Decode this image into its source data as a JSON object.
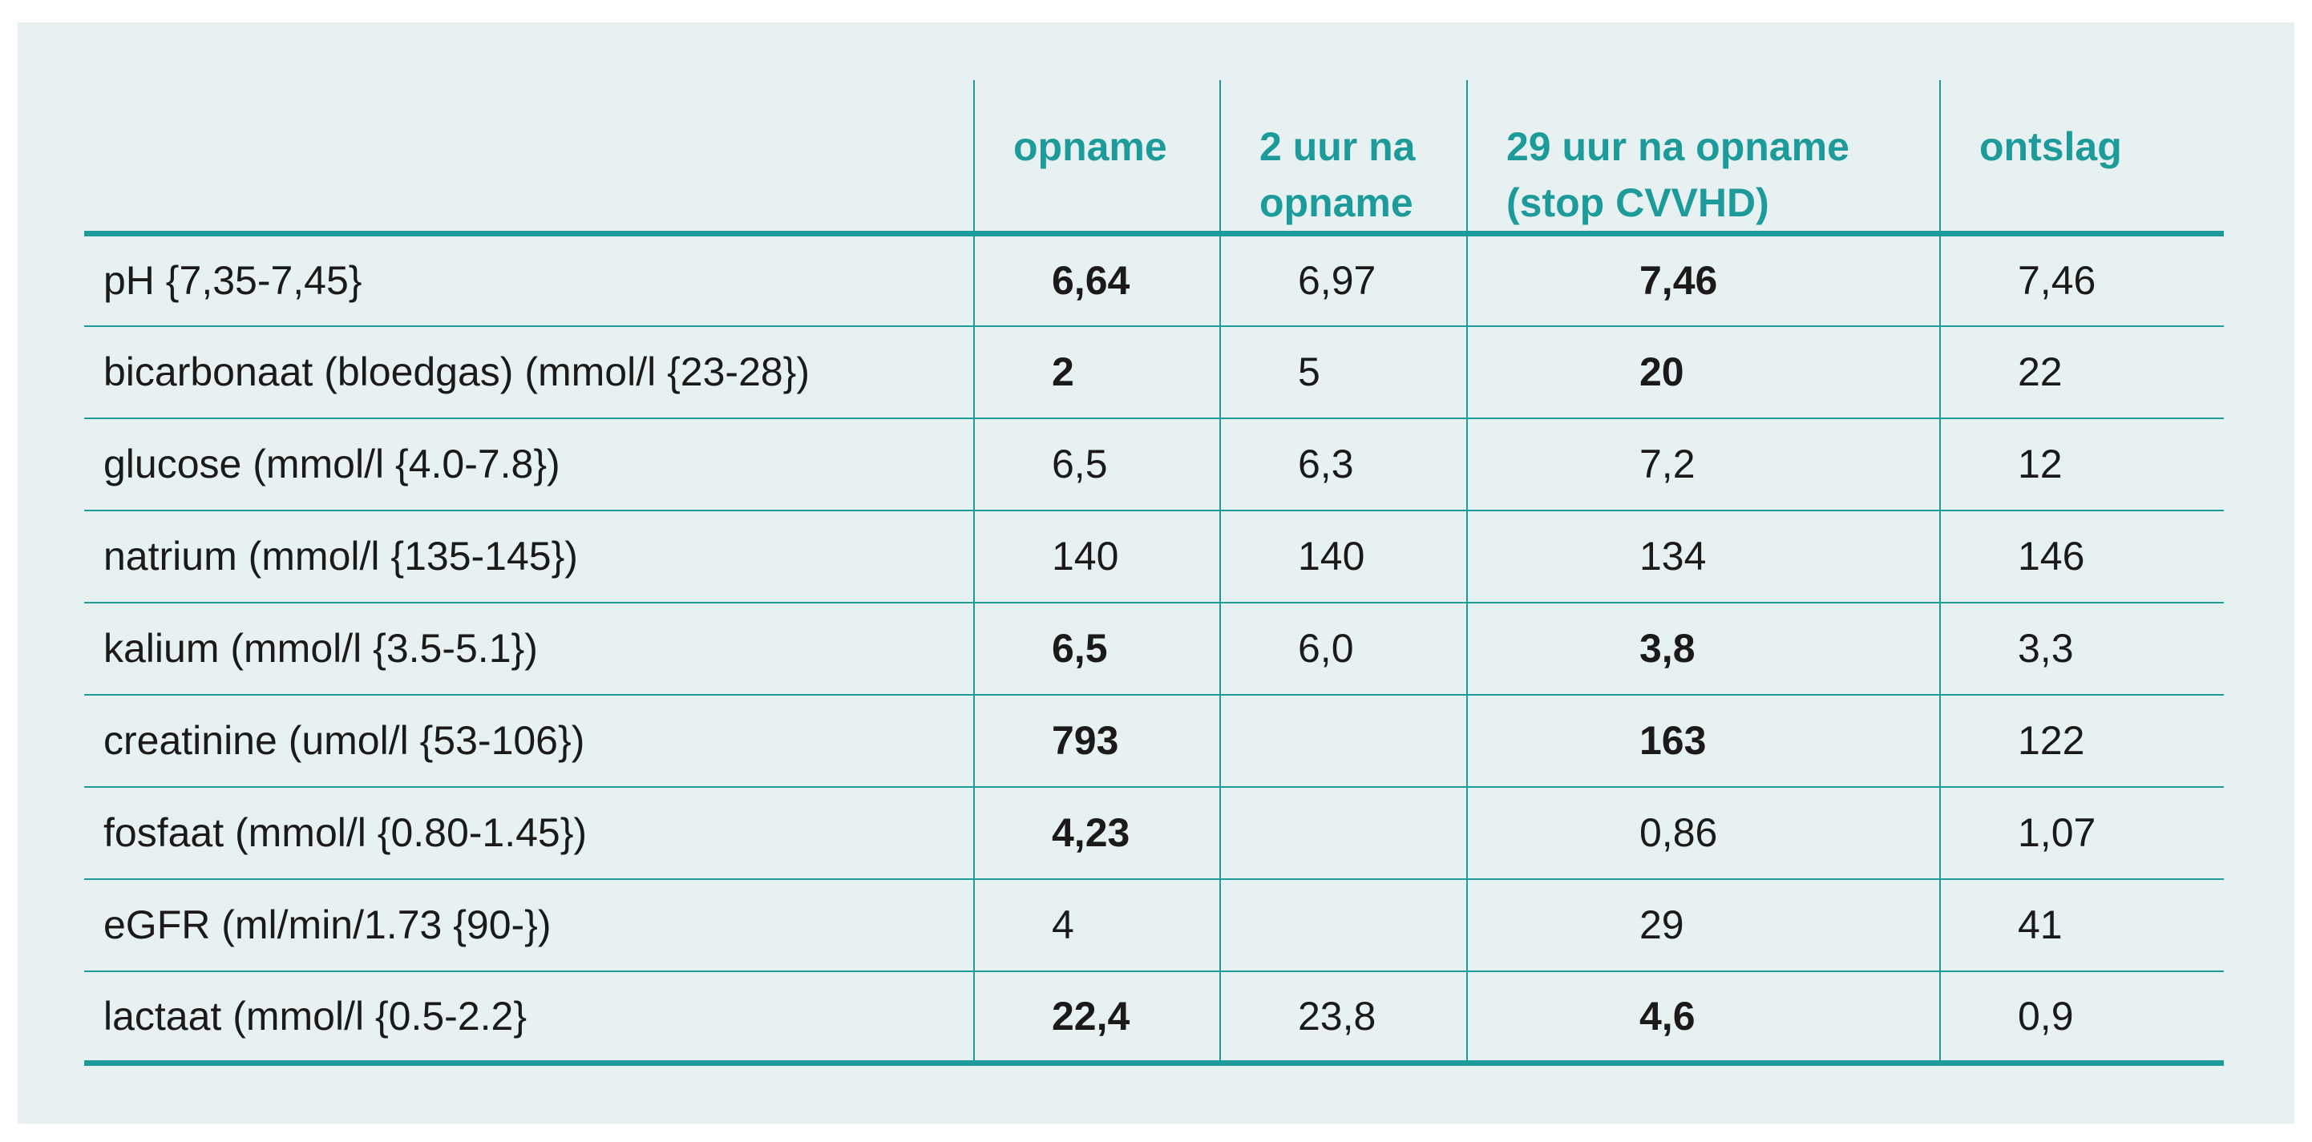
{
  "table": {
    "headers": [
      "",
      "opname",
      "2 uur na opname",
      "29 uur na opname (stop CVVHD)",
      "ontslag"
    ],
    "rows": [
      {
        "label": "pH {7,35-7,45}",
        "values": [
          "6,64",
          "6,97",
          "7,46",
          "7,46"
        ],
        "bold": [
          true,
          false,
          true,
          false
        ]
      },
      {
        "label": "bicarbonaat (bloedgas) (mmol/l {23-28})",
        "values": [
          "2",
          "5",
          "20",
          "22"
        ],
        "bold": [
          true,
          false,
          true,
          false
        ]
      },
      {
        "label": "glucose (mmol/l {4.0-7.8})",
        "values": [
          "6,5",
          "6,3",
          "7,2",
          "12"
        ],
        "bold": [
          false,
          false,
          false,
          false
        ]
      },
      {
        "label": "natrium (mmol/l {135-145})",
        "values": [
          "140",
          "140",
          "134",
          "146"
        ],
        "bold": [
          false,
          false,
          false,
          false
        ]
      },
      {
        "label": "kalium (mmol/l {3.5-5.1})",
        "values": [
          "6,5",
          "6,0",
          "3,8",
          "3,3"
        ],
        "bold": [
          true,
          false,
          true,
          false
        ]
      },
      {
        "label": "creatinine (umol/l {53-106})",
        "values": [
          "793",
          "",
          "163",
          "122"
        ],
        "bold": [
          true,
          false,
          true,
          false
        ]
      },
      {
        "label": "fosfaat (mmol/l {0.80-1.45})",
        "values": [
          "4,23",
          "",
          "0,86",
          "1,07"
        ],
        "bold": [
          true,
          false,
          false,
          false
        ]
      },
      {
        "label": "eGFR (ml/min/1.73 {90-})",
        "values": [
          "4",
          "",
          "29",
          "41"
        ],
        "bold": [
          false,
          false,
          false,
          false
        ]
      },
      {
        "label": "lactaat (mmol/l {0.5-2.2}",
        "values": [
          "22,4",
          "23,8",
          "4,6",
          "0,9"
        ],
        "bold": [
          true,
          false,
          true,
          false
        ]
      }
    ]
  },
  "colors": {
    "accent": "#1d9a9a",
    "panel_background": "#e8f1f1",
    "text": "#1a1a1a"
  }
}
